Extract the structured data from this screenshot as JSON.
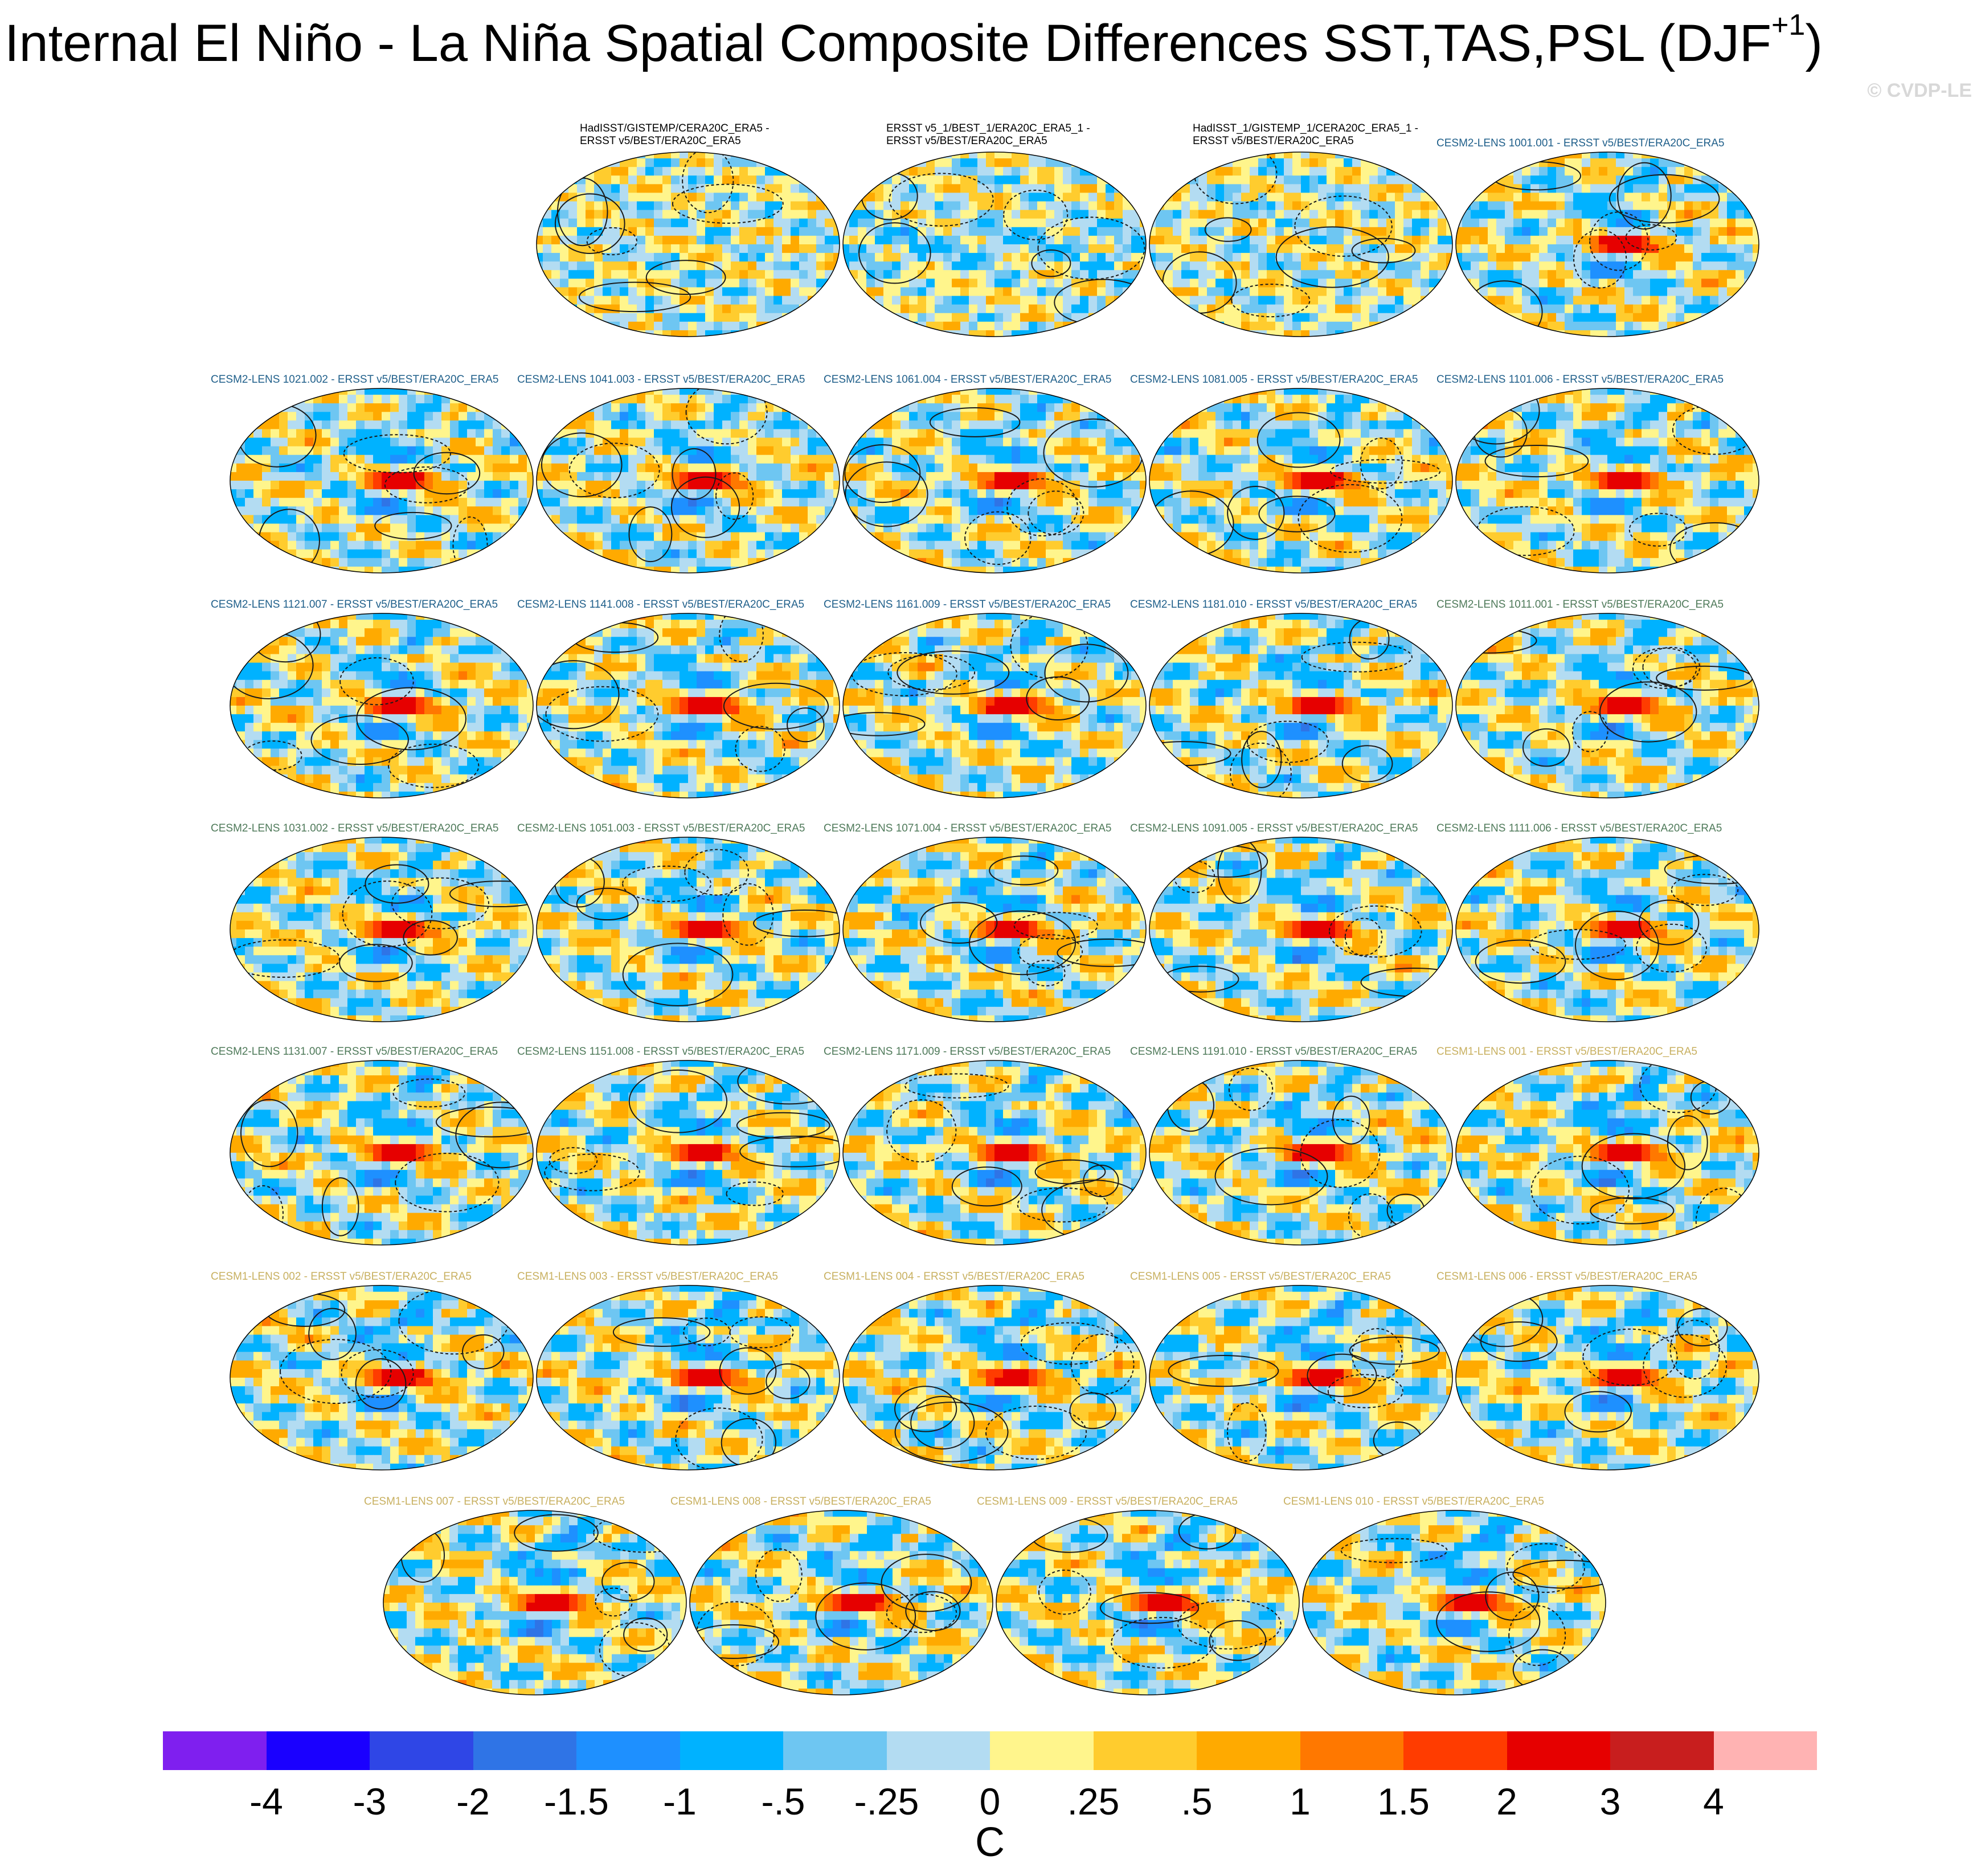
{
  "title": "Internal El Niño - La Niña Spatial Composite Differences SST,TAS,PSL (DJF",
  "title_sup": "+1",
  "title_close": ")",
  "watermark": "© CVDP-LE",
  "panels": [
    {
      "title": "HadISST/GISTEMP/CERA20C_ERA5 -\nERSST v5/BEST/ERA20C_ERA5",
      "group": "obs",
      "pattern": "obs1"
    },
    {
      "title": "ERSST v5_1/BEST_1/ERA20C_ERA5_1 -\nERSST v5/BEST/ERA20C_ERA5",
      "group": "obs",
      "pattern": "obs2"
    },
    {
      "title": "HadISST_1/GISTEMP_1/CERA20C_ERA5_1 -\nERSST v5/BEST/ERA20C_ERA5",
      "group": "obs",
      "pattern": "obs3"
    },
    {
      "title": "CESM2-LENS 1001.001 - ERSST v5/BEST/ERA20C_ERA5",
      "group": "c2a",
      "pattern": "enso"
    },
    {
      "title": "CESM2-LENS 1021.002 - ERSST v5/BEST/ERA20C_ERA5",
      "group": "c2a",
      "pattern": "enso"
    },
    {
      "title": "CESM2-LENS 1041.003 - ERSST v5/BEST/ERA20C_ERA5",
      "group": "c2a",
      "pattern": "enso"
    },
    {
      "title": "CESM2-LENS 1061.004 - ERSST v5/BEST/ERA20C_ERA5",
      "group": "c2a",
      "pattern": "enso"
    },
    {
      "title": "CESM2-LENS 1081.005 - ERSST v5/BEST/ERA20C_ERA5",
      "group": "c2a",
      "pattern": "enso"
    },
    {
      "title": "CESM2-LENS 1101.006 - ERSST v5/BEST/ERA20C_ERA5",
      "group": "c2a",
      "pattern": "enso"
    },
    {
      "title": "CESM2-LENS 1121.007 - ERSST v5/BEST/ERA20C_ERA5",
      "group": "c2a",
      "pattern": "enso"
    },
    {
      "title": "CESM2-LENS 1141.008 - ERSST v5/BEST/ERA20C_ERA5",
      "group": "c2a",
      "pattern": "enso"
    },
    {
      "title": "CESM2-LENS 1161.009 - ERSST v5/BEST/ERA20C_ERA5",
      "group": "c2a",
      "pattern": "enso"
    },
    {
      "title": "CESM2-LENS 1181.010 - ERSST v5/BEST/ERA20C_ERA5",
      "group": "c2a",
      "pattern": "enso"
    },
    {
      "title": "CESM2-LENS 1011.001 - ERSST v5/BEST/ERA20C_ERA5",
      "group": "c2b",
      "pattern": "enso"
    },
    {
      "title": "CESM2-LENS 1031.002 - ERSST v5/BEST/ERA20C_ERA5",
      "group": "c2b",
      "pattern": "enso"
    },
    {
      "title": "CESM2-LENS 1051.003 - ERSST v5/BEST/ERA20C_ERA5",
      "group": "c2b",
      "pattern": "enso"
    },
    {
      "title": "CESM2-LENS 1071.004 - ERSST v5/BEST/ERA20C_ERA5",
      "group": "c2b",
      "pattern": "enso"
    },
    {
      "title": "CESM2-LENS 1091.005 - ERSST v5/BEST/ERA20C_ERA5",
      "group": "c2b",
      "pattern": "enso"
    },
    {
      "title": "CESM2-LENS 1111.006 - ERSST v5/BEST/ERA20C_ERA5",
      "group": "c2b",
      "pattern": "enso"
    },
    {
      "title": "CESM2-LENS 1131.007 - ERSST v5/BEST/ERA20C_ERA5",
      "group": "c2b",
      "pattern": "enso"
    },
    {
      "title": "CESM2-LENS 1151.008 - ERSST v5/BEST/ERA20C_ERA5",
      "group": "c2b",
      "pattern": "enso"
    },
    {
      "title": "CESM2-LENS 1171.009 - ERSST v5/BEST/ERA20C_ERA5",
      "group": "c2b",
      "pattern": "enso"
    },
    {
      "title": "CESM2-LENS 1191.010 - ERSST v5/BEST/ERA20C_ERA5",
      "group": "c2b",
      "pattern": "enso"
    },
    {
      "title": "CESM1-LENS 001 - ERSST v5/BEST/ERA20C_ERA5",
      "group": "c1",
      "pattern": "enso1"
    },
    {
      "title": "CESM1-LENS 002 - ERSST v5/BEST/ERA20C_ERA5",
      "group": "c1",
      "pattern": "enso1"
    },
    {
      "title": "CESM1-LENS 003 - ERSST v5/BEST/ERA20C_ERA5",
      "group": "c1",
      "pattern": "enso1"
    },
    {
      "title": "CESM1-LENS 004 - ERSST v5/BEST/ERA20C_ERA5",
      "group": "c1",
      "pattern": "enso1"
    },
    {
      "title": "CESM1-LENS 005 - ERSST v5/BEST/ERA20C_ERA5",
      "group": "c1",
      "pattern": "enso1"
    },
    {
      "title": "CESM1-LENS 006 - ERSST v5/BEST/ERA20C_ERA5",
      "group": "c1",
      "pattern": "enso1"
    },
    {
      "title": "CESM1-LENS 007 - ERSST v5/BEST/ERA20C_ERA5",
      "group": "c1",
      "pattern": "enso1"
    },
    {
      "title": "CESM1-LENS 008 - ERSST v5/BEST/ERA20C_ERA5",
      "group": "c1",
      "pattern": "enso1"
    },
    {
      "title": "CESM1-LENS 009 - ERSST v5/BEST/ERA20C_ERA5",
      "group": "c1",
      "pattern": "enso1"
    },
    {
      "title": "CESM1-LENS 010 - ERSST v5/BEST/ERA20C_ERA5",
      "group": "c1",
      "pattern": "enso1"
    }
  ],
  "chart_data": {
    "type": "heatmap",
    "title": "Internal El Niño - La Niña Spatial Composite Differences SST,TAS,PSL (DJF+1)",
    "season": "DJF+1",
    "fields": [
      "SST",
      "TAS",
      "PSL"
    ],
    "projection": "robinson-like global maps",
    "units": "C",
    "colorbar": {
      "labels": [
        "-4",
        "-3",
        "-2",
        "-1.5",
        "-1",
        "-.5",
        "-.25",
        "0",
        ".25",
        ".5",
        "1",
        "1.5",
        "2",
        "3",
        "4"
      ],
      "levels": [
        -4,
        -3,
        -2,
        -1.5,
        -1,
        -0.5,
        -0.25,
        0,
        0.25,
        0.5,
        1,
        1.5,
        2,
        3,
        4
      ],
      "colors": [
        "#7f1fef",
        "#1a00ff",
        "#2f46e6",
        "#2f74e6",
        "#1e90ff",
        "#00b2ff",
        "#6ec6f2",
        "#b3dcf2",
        "#fff58c",
        "#ffcc2e",
        "#ffaa00",
        "#ff7800",
        "#ff3c00",
        "#e60000",
        "#c81e1e",
        "#ffb3b3"
      ]
    },
    "contours": "PSL difference, solid positive / dashed negative"
  }
}
